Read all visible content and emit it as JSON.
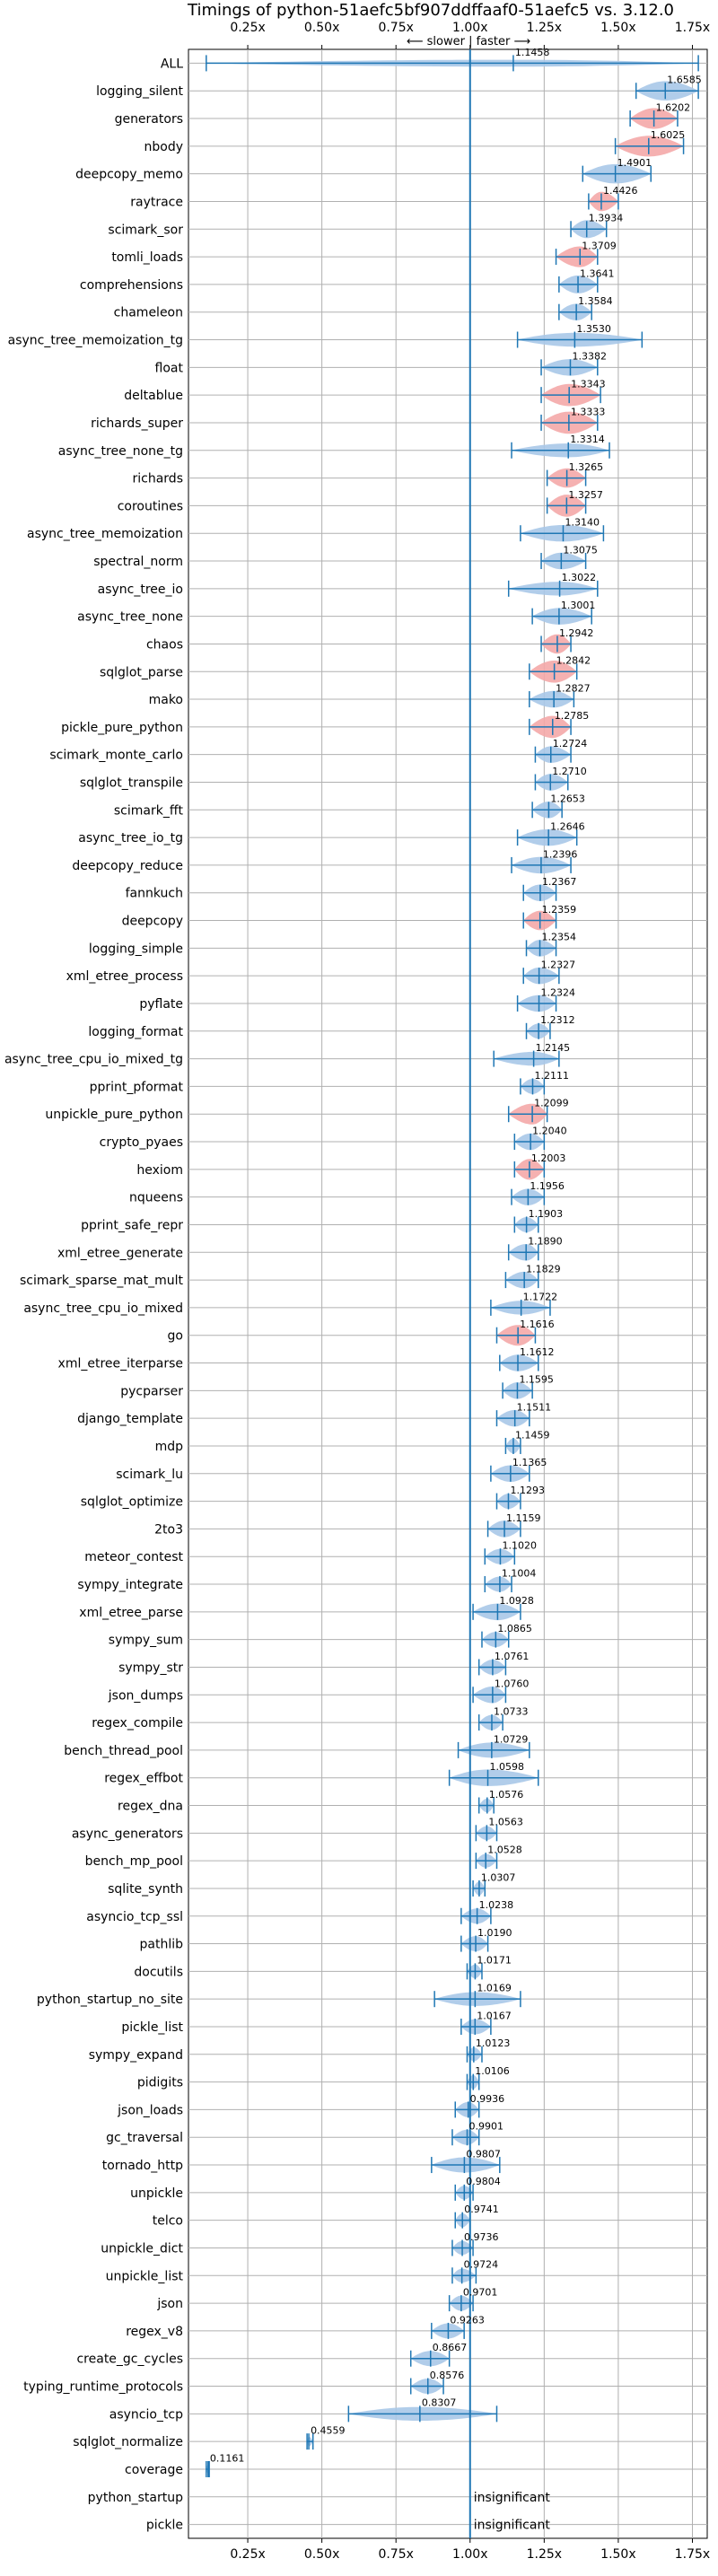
{
  "chart_data": {
    "type": "violin",
    "title": "Timings of python-51aefc5bf907ddffaaf0-51aefc5 vs. 3.12.0",
    "annotation": "⟵ slower | faster ⟶",
    "xlim": [
      0.05,
      1.8
    ],
    "xticks": [
      0.25,
      0.5,
      0.75,
      1.0,
      1.25,
      1.5,
      1.75
    ],
    "xtick_labels": [
      "0.25x",
      "0.50x",
      "0.75x",
      "1.00x",
      "1.25x",
      "1.50x",
      "1.75x"
    ],
    "reference_line": 1.0,
    "colors": {
      "line": "#1f77b4",
      "violin": "#a8c8e8",
      "highlight": "#f4a9a9",
      "grid": "#b0b0b0"
    },
    "insignificant_text": "insignificant",
    "rows": [
      {
        "name": "ALL",
        "value": 1.1458,
        "label": "1.1458",
        "min": 0.11,
        "max": 1.77,
        "width": 0.25
      },
      {
        "name": "logging_silent",
        "value": 1.6585,
        "label": "1.6585",
        "min": 1.56,
        "max": 1.77,
        "width": 0.7
      },
      {
        "name": "generators",
        "value": 1.6202,
        "label": "1.6202",
        "min": 1.54,
        "max": 1.7,
        "width": 0.75,
        "highlight": true
      },
      {
        "name": "nbody",
        "value": 1.6025,
        "label": "1.6025",
        "min": 1.49,
        "max": 1.72,
        "width": 0.75,
        "highlight": true
      },
      {
        "name": "deepcopy_memo",
        "value": 1.4901,
        "label": "1.4901",
        "min": 1.38,
        "max": 1.61,
        "width": 0.7
      },
      {
        "name": "raytrace",
        "value": 1.4426,
        "label": "1.4426",
        "min": 1.4,
        "max": 1.5,
        "width": 0.7,
        "highlight": true
      },
      {
        "name": "scimark_sor",
        "value": 1.3934,
        "label": "1.3934",
        "min": 1.34,
        "max": 1.46,
        "width": 0.65
      },
      {
        "name": "tomli_loads",
        "value": 1.3709,
        "label": "1.3709",
        "min": 1.29,
        "max": 1.43,
        "width": 0.75,
        "highlight": true
      },
      {
        "name": "comprehensions",
        "value": 1.3641,
        "label": "1.3641",
        "min": 1.3,
        "max": 1.43,
        "width": 0.65
      },
      {
        "name": "chameleon",
        "value": 1.3584,
        "label": "1.3584",
        "min": 1.3,
        "max": 1.41,
        "width": 0.6
      },
      {
        "name": "async_tree_memoization_tg",
        "value": 1.353,
        "label": "1.3530",
        "min": 1.16,
        "max": 1.58,
        "width": 0.5
      },
      {
        "name": "float",
        "value": 1.3382,
        "label": "1.3382",
        "min": 1.24,
        "max": 1.43,
        "width": 0.6
      },
      {
        "name": "deltablue",
        "value": 1.3343,
        "label": "1.3343",
        "min": 1.24,
        "max": 1.44,
        "width": 0.8,
        "highlight": true
      },
      {
        "name": "richards_super",
        "value": 1.3333,
        "label": "1.3333",
        "min": 1.24,
        "max": 1.43,
        "width": 0.8,
        "highlight": true
      },
      {
        "name": "async_tree_none_tg",
        "value": 1.3314,
        "label": "1.3314",
        "min": 1.14,
        "max": 1.47,
        "width": 0.5
      },
      {
        "name": "richards",
        "value": 1.3265,
        "label": "1.3265",
        "min": 1.26,
        "max": 1.39,
        "width": 0.7,
        "highlight": true
      },
      {
        "name": "coroutines",
        "value": 1.3257,
        "label": "1.3257",
        "min": 1.26,
        "max": 1.39,
        "width": 0.8,
        "highlight": true
      },
      {
        "name": "async_tree_memoization",
        "value": 1.314,
        "label": "1.3140",
        "min": 1.17,
        "max": 1.45,
        "width": 0.6
      },
      {
        "name": "spectral_norm",
        "value": 1.3075,
        "label": "1.3075",
        "min": 1.24,
        "max": 1.39,
        "width": 0.6
      },
      {
        "name": "async_tree_io",
        "value": 1.3022,
        "label": "1.3022",
        "min": 1.13,
        "max": 1.43,
        "width": 0.5
      },
      {
        "name": "async_tree_none",
        "value": 1.3001,
        "label": "1.3001",
        "min": 1.21,
        "max": 1.41,
        "width": 0.6
      },
      {
        "name": "chaos",
        "value": 1.2942,
        "label": "1.2942",
        "min": 1.24,
        "max": 1.34,
        "width": 0.7,
        "highlight": true
      },
      {
        "name": "sqlglot_parse",
        "value": 1.2842,
        "label": "1.2842",
        "min": 1.2,
        "max": 1.36,
        "width": 0.8,
        "highlight": true
      },
      {
        "name": "mako",
        "value": 1.2827,
        "label": "1.2827",
        "min": 1.2,
        "max": 1.35,
        "width": 0.6
      },
      {
        "name": "pickle_pure_python",
        "value": 1.2785,
        "label": "1.2785",
        "min": 1.2,
        "max": 1.34,
        "width": 0.8,
        "highlight": true
      },
      {
        "name": "scimark_monte_carlo",
        "value": 1.2724,
        "label": "1.2724",
        "min": 1.22,
        "max": 1.34,
        "width": 0.6
      },
      {
        "name": "sqlglot_transpile",
        "value": 1.271,
        "label": "1.2710",
        "min": 1.22,
        "max": 1.33,
        "width": 0.6
      },
      {
        "name": "scimark_fft",
        "value": 1.2653,
        "label": "1.2653",
        "min": 1.21,
        "max": 1.31,
        "width": 0.6
      },
      {
        "name": "async_tree_io_tg",
        "value": 1.2646,
        "label": "1.2646",
        "min": 1.16,
        "max": 1.36,
        "width": 0.6
      },
      {
        "name": "deepcopy_reduce",
        "value": 1.2396,
        "label": "1.2396",
        "min": 1.14,
        "max": 1.34,
        "width": 0.6
      },
      {
        "name": "fannkuch",
        "value": 1.2367,
        "label": "1.2367",
        "min": 1.18,
        "max": 1.29,
        "width": 0.6
      },
      {
        "name": "deepcopy",
        "value": 1.2359,
        "label": "1.2359",
        "min": 1.18,
        "max": 1.29,
        "width": 0.7,
        "highlight": true
      },
      {
        "name": "logging_simple",
        "value": 1.2354,
        "label": "1.2354",
        "min": 1.19,
        "max": 1.29,
        "width": 0.6
      },
      {
        "name": "xml_etree_process",
        "value": 1.2327,
        "label": "1.2327",
        "min": 1.18,
        "max": 1.3,
        "width": 0.6
      },
      {
        "name": "pyflate",
        "value": 1.2324,
        "label": "1.2324",
        "min": 1.16,
        "max": 1.29,
        "width": 0.6
      },
      {
        "name": "logging_format",
        "value": 1.2312,
        "label": "1.2312",
        "min": 1.19,
        "max": 1.27,
        "width": 0.55
      },
      {
        "name": "async_tree_cpu_io_mixed_tg",
        "value": 1.2145,
        "label": "1.2145",
        "min": 1.08,
        "max": 1.3,
        "width": 0.5
      },
      {
        "name": "pprint_pformat",
        "value": 1.2111,
        "label": "1.2111",
        "min": 1.17,
        "max": 1.25,
        "width": 0.55
      },
      {
        "name": "unpickle_pure_python",
        "value": 1.2099,
        "label": "1.2099",
        "min": 1.13,
        "max": 1.26,
        "width": 0.75,
        "highlight": true
      },
      {
        "name": "crypto_pyaes",
        "value": 1.204,
        "label": "1.2040",
        "min": 1.15,
        "max": 1.25,
        "width": 0.6
      },
      {
        "name": "hexiom",
        "value": 1.2003,
        "label": "1.2003",
        "min": 1.15,
        "max": 1.25,
        "width": 0.75,
        "highlight": true
      },
      {
        "name": "nqueens",
        "value": 1.1956,
        "label": "1.1956",
        "min": 1.14,
        "max": 1.25,
        "width": 0.6
      },
      {
        "name": "pprint_safe_repr",
        "value": 1.1903,
        "label": "1.1903",
        "min": 1.15,
        "max": 1.23,
        "width": 0.55
      },
      {
        "name": "xml_etree_generate",
        "value": 1.189,
        "label": "1.1890",
        "min": 1.13,
        "max": 1.23,
        "width": 0.6
      },
      {
        "name": "scimark_sparse_mat_mult",
        "value": 1.1829,
        "label": "1.1829",
        "min": 1.12,
        "max": 1.23,
        "width": 0.6
      },
      {
        "name": "async_tree_cpu_io_mixed",
        "value": 1.1722,
        "label": "1.1722",
        "min": 1.07,
        "max": 1.27,
        "width": 0.5
      },
      {
        "name": "go",
        "value": 1.1616,
        "label": "1.1616",
        "min": 1.09,
        "max": 1.22,
        "width": 0.75,
        "highlight": true
      },
      {
        "name": "xml_etree_iterparse",
        "value": 1.1612,
        "label": "1.1612",
        "min": 1.1,
        "max": 1.23,
        "width": 0.6
      },
      {
        "name": "pycparser",
        "value": 1.1595,
        "label": "1.1595",
        "min": 1.11,
        "max": 1.21,
        "width": 0.6
      },
      {
        "name": "django_template",
        "value": 1.1511,
        "label": "1.1511",
        "min": 1.09,
        "max": 1.2,
        "width": 0.6
      },
      {
        "name": "mdp",
        "value": 1.1459,
        "label": "1.1459",
        "min": 1.12,
        "max": 1.17,
        "width": 0.55
      },
      {
        "name": "scimark_lu",
        "value": 1.1365,
        "label": "1.1365",
        "min": 1.07,
        "max": 1.2,
        "width": 0.6
      },
      {
        "name": "sqlglot_optimize",
        "value": 1.1293,
        "label": "1.1293",
        "min": 1.09,
        "max": 1.17,
        "width": 0.55
      },
      {
        "name": "2to3",
        "value": 1.1159,
        "label": "1.1159",
        "min": 1.06,
        "max": 1.17,
        "width": 0.6
      },
      {
        "name": "meteor_contest",
        "value": 1.102,
        "label": "1.1020",
        "min": 1.05,
        "max": 1.15,
        "width": 0.55
      },
      {
        "name": "sympy_integrate",
        "value": 1.1004,
        "label": "1.1004",
        "min": 1.05,
        "max": 1.14,
        "width": 0.55
      },
      {
        "name": "xml_etree_parse",
        "value": 1.0928,
        "label": "1.0928",
        "min": 1.01,
        "max": 1.17,
        "width": 0.6
      },
      {
        "name": "sympy_sum",
        "value": 1.0865,
        "label": "1.0865",
        "min": 1.04,
        "max": 1.13,
        "width": 0.55
      },
      {
        "name": "sympy_str",
        "value": 1.0761,
        "label": "1.0761",
        "min": 1.03,
        "max": 1.12,
        "width": 0.55
      },
      {
        "name": "json_dumps",
        "value": 1.076,
        "label": "1.0760",
        "min": 1.01,
        "max": 1.12,
        "width": 0.6
      },
      {
        "name": "regex_compile",
        "value": 1.0733,
        "label": "1.0733",
        "min": 1.03,
        "max": 1.11,
        "width": 0.55
      },
      {
        "name": "bench_thread_pool",
        "value": 1.0729,
        "label": "1.0729",
        "min": 0.96,
        "max": 1.2,
        "width": 0.55
      },
      {
        "name": "regex_effbot",
        "value": 1.0598,
        "label": "1.0598",
        "min": 0.93,
        "max": 1.23,
        "width": 0.6
      },
      {
        "name": "regex_dna",
        "value": 1.0576,
        "label": "1.0576",
        "min": 1.03,
        "max": 1.08,
        "width": 0.5
      },
      {
        "name": "async_generators",
        "value": 1.0563,
        "label": "1.0563",
        "min": 1.02,
        "max": 1.09,
        "width": 0.5
      },
      {
        "name": "bench_mp_pool",
        "value": 1.0528,
        "label": "1.0528",
        "min": 1.02,
        "max": 1.09,
        "width": 0.5
      },
      {
        "name": "sqlite_synth",
        "value": 1.0307,
        "label": "1.0307",
        "min": 1.01,
        "max": 1.05,
        "width": 0.5
      },
      {
        "name": "asyncio_tcp_ssl",
        "value": 1.0238,
        "label": "1.0238",
        "min": 0.97,
        "max": 1.07,
        "width": 0.55
      },
      {
        "name": "pathlib",
        "value": 1.019,
        "label": "1.0190",
        "min": 0.97,
        "max": 1.06,
        "width": 0.55
      },
      {
        "name": "docutils",
        "value": 1.0171,
        "label": "1.0171",
        "min": 0.99,
        "max": 1.04,
        "width": 0.5
      },
      {
        "name": "python_startup_no_site",
        "value": 1.0169,
        "label": "1.0169",
        "min": 0.88,
        "max": 1.17,
        "width": 0.5
      },
      {
        "name": "pickle_list",
        "value": 1.0167,
        "label": "1.0167",
        "min": 0.97,
        "max": 1.07,
        "width": 0.55
      },
      {
        "name": "sympy_expand",
        "value": 1.0123,
        "label": "1.0123",
        "min": 0.99,
        "max": 1.04,
        "width": 0.5
      },
      {
        "name": "pidigits",
        "value": 1.0106,
        "label": "1.0106",
        "min": 0.99,
        "max": 1.03,
        "width": 0.5
      },
      {
        "name": "json_loads",
        "value": 0.9936,
        "label": "0.9936",
        "min": 0.95,
        "max": 1.03,
        "width": 0.55
      },
      {
        "name": "gc_traversal",
        "value": 0.9901,
        "label": "0.9901",
        "min": 0.94,
        "max": 1.03,
        "width": 0.55
      },
      {
        "name": "tornado_http",
        "value": 0.9807,
        "label": "0.9807",
        "min": 0.87,
        "max": 1.1,
        "width": 0.55
      },
      {
        "name": "unpickle",
        "value": 0.9804,
        "label": "0.9804",
        "min": 0.95,
        "max": 1.01,
        "width": 0.5
      },
      {
        "name": "telco",
        "value": 0.9741,
        "label": "0.9741",
        "min": 0.95,
        "max": 1.0,
        "width": 0.5
      },
      {
        "name": "unpickle_dict",
        "value": 0.9736,
        "label": "0.9736",
        "min": 0.94,
        "max": 1.01,
        "width": 0.5
      },
      {
        "name": "unpickle_list",
        "value": 0.9724,
        "label": "0.9724",
        "min": 0.94,
        "max": 1.02,
        "width": 0.5
      },
      {
        "name": "json",
        "value": 0.9701,
        "label": "0.9701",
        "min": 0.93,
        "max": 1.01,
        "width": 0.55
      },
      {
        "name": "regex_v8",
        "value": 0.9263,
        "label": "0.9263",
        "min": 0.87,
        "max": 0.98,
        "width": 0.55
      },
      {
        "name": "create_gc_cycles",
        "value": 0.8667,
        "label": "0.8667",
        "min": 0.8,
        "max": 0.93,
        "width": 0.55
      },
      {
        "name": "typing_runtime_protocols",
        "value": 0.8576,
        "label": "0.8576",
        "min": 0.8,
        "max": 0.91,
        "width": 0.55
      },
      {
        "name": "asyncio_tcp",
        "value": 0.8307,
        "label": "0.8307",
        "min": 0.59,
        "max": 1.09,
        "width": 0.5
      },
      {
        "name": "sqlglot_normalize",
        "value": 0.4559,
        "label": "0.4559",
        "min": 0.45,
        "max": 0.47,
        "width": 0.35
      },
      {
        "name": "coverage",
        "value": 0.1161,
        "label": "0.1161",
        "min": 0.11,
        "max": 0.12,
        "width": 0.35
      },
      {
        "name": "python_startup",
        "insignificant": true
      },
      {
        "name": "pickle",
        "insignificant": true
      }
    ]
  }
}
